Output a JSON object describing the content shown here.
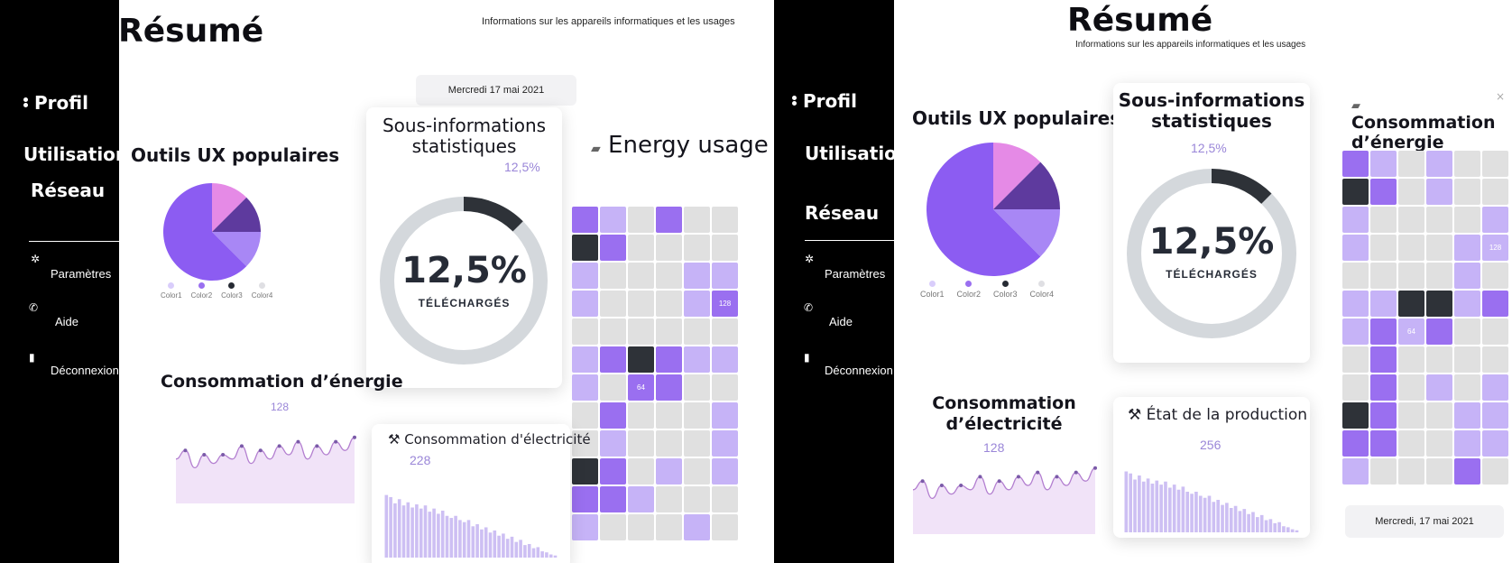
{
  "colors": {
    "sidebar": "#000000",
    "accent": "#8b5cf6",
    "pie": [
      "#8c5cf2",
      "#e58ae6",
      "#5e3a9e",
      "#a887f5"
    ],
    "legend_dots": [
      "#d9cdfb",
      "#9a6ff0",
      "#262a33",
      "#dfdfe3"
    ],
    "donut_track": "#d4d8dc",
    "donut_arc": "#2e3238",
    "area_fill": "#f1e3f8",
    "area_line": "#b37fd0",
    "bar_fill": "#cdbff3",
    "cells": {
      "g": "#e0e0e0",
      "l": "#c6b3f7",
      "m": "#9a6ff0",
      "d": "#2e3238"
    }
  },
  "sidebar": {
    "profil": "Profil",
    "utilisation": "Utilisation",
    "reseau": "Réseau",
    "parametres": "Paramètres",
    "aide": "Aide",
    "deconnexion": "Déconnexion",
    "icons": [
      "gear-icon",
      "phone-icon",
      "door-exit-icon"
    ]
  },
  "left": {
    "title": "Résumé",
    "subtitle": "Informations sur les appareils informatiques et les usages",
    "date": "Mercredi 17 mai 2021",
    "ux_title": "Outils UX populaires",
    "legend": [
      "Color1",
      "Color2",
      "Color3",
      "Color4"
    ],
    "stats_title": "Sous-informations statistiques",
    "stats_value": "12,5%",
    "donut_value": "12,5%",
    "donut_caption": "TÉLÉCHARGÉS",
    "energy_title": "Energy usage",
    "conso_title": "Consommation d’énergie",
    "conso_value": "128",
    "elec_title": "Consommation d'électricité",
    "elec_value": "228",
    "grid_label_1": "128",
    "grid_label_2": "64"
  },
  "right": {
    "title": "Résumé",
    "subtitle": "Informations sur les appareils informatiques et les usages",
    "date": "Mercredi, 17 mai 2021",
    "ux_title": "Outils UX populaires",
    "legend": [
      "Color1",
      "Color2",
      "Color3",
      "Color4"
    ],
    "stats_title": "Sous-informations statistiques",
    "stats_value": "12,5%",
    "donut_value": "12,5%",
    "donut_caption": "TÉLÉCHARGÉS",
    "energy_title": "Consommation d’énergie",
    "conso_title": "Consommation d’électricité",
    "conso_value": "128",
    "prod_title": "État de la production",
    "prod_value": "256",
    "grid_label_1": "128",
    "grid_label_2": "64",
    "close": "×"
  },
  "chart_data": [
    {
      "type": "pie",
      "values": [
        62.5,
        12.5,
        12.5,
        12.5
      ],
      "legend": [
        "Color1",
        "Color2",
        "Color3",
        "Color4"
      ]
    },
    {
      "type": "pie",
      "value": 12.5,
      "label": "12,5%",
      "caption": "TÉLÉCHARGÉS"
    },
    {
      "type": "area",
      "values": [
        4,
        6,
        2,
        5,
        3,
        5,
        4,
        7,
        3,
        6,
        4,
        7,
        5,
        8,
        4,
        7,
        5,
        8,
        6,
        9
      ]
    },
    {
      "type": "bar",
      "values": [
        60,
        58,
        52,
        56,
        50,
        53,
        48,
        51,
        47,
        50,
        44,
        47,
        42,
        45,
        40,
        38,
        40,
        36,
        34,
        36,
        30,
        32,
        27,
        29,
        24,
        26,
        21,
        23,
        18,
        20,
        15,
        17,
        12,
        13,
        9,
        10,
        6,
        5,
        3,
        2
      ]
    },
    {
      "type": "heatmap",
      "rows_left": [
        "mlgmgg",
        "dmgggg",
        "lgggll",
        "lggglm",
        "gggggg",
        "lmdmll",
        "lgmmgg",
        "gmgggl",
        "glgggl",
        "dmglgl",
        "mmlggg",
        "lggglg"
      ],
      "rows_right": [
        "mlglgg",
        "dmglgg",
        "lggggl",
        "lgggll",
        "gggglg",
        "llddlm",
        "lmlmgg",
        "gmgggg",
        "gmglgl",
        "dmggll",
        "mmggll",
        "lgggmg"
      ]
    }
  ]
}
